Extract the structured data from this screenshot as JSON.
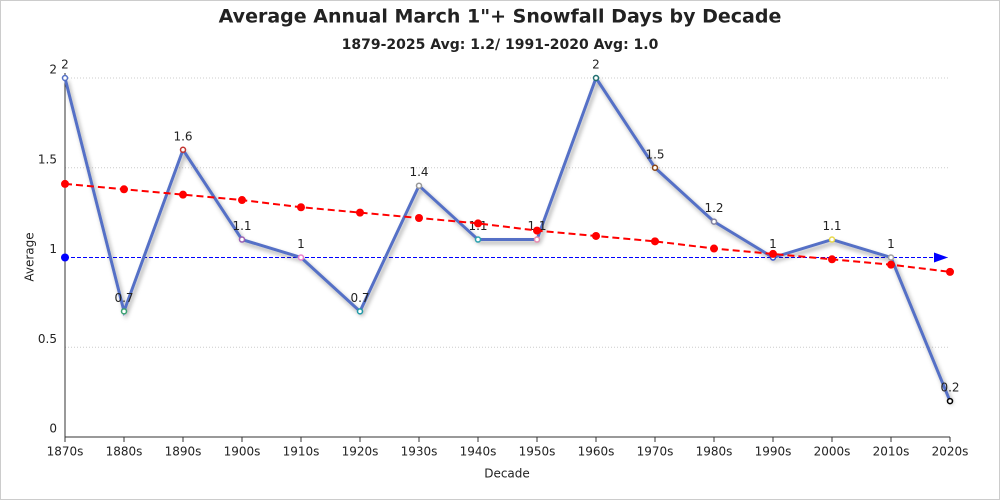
{
  "chart_data": {
    "type": "line",
    "title": "Average Annual March 1\"+ Snowfall Days by Decade",
    "subtitle": "1879-2025 Avg: 1.2/ 1991-2020 Avg: 1.0",
    "x_label": "Decade",
    "y_label": "Average",
    "categories": [
      "1870s",
      "1880s",
      "1890s",
      "1900s",
      "1910s",
      "1920s",
      "1930s",
      "1940s",
      "1950s",
      "1960s",
      "1970s",
      "1980s",
      "1990s",
      "2000s",
      "2010s",
      "2020s"
    ],
    "series": [
      {
        "color": "#5470c6",
        "values": [
          2,
          0.7,
          1.6,
          1.1,
          1,
          0.7,
          1.4,
          1.1,
          1.1,
          2,
          1.5,
          1.2,
          1,
          1.1,
          1,
          0.2
        ],
        "point_colors": [
          "#5470c6",
          "#3ba272",
          "#c23531",
          "#9a60b4",
          "#ea7ccc",
          "#1f9aa8",
          "#999999",
          "#2aa2b0",
          "#e88bb0",
          "#1f6f6f",
          "#8b4513",
          "#8080a0",
          "#3050d0",
          "#e8d84a",
          "#a0a0a0",
          "#000000"
        ],
        "labels": true
      },
      {
        "color": "#ff0000",
        "dashed": true,
        "values": [
          1.41,
          1.38,
          1.35,
          1.32,
          1.28,
          1.25,
          1.22,
          1.19,
          1.15,
          1.12,
          1.09,
          1.05,
          1.02,
          0.99,
          0.96,
          0.92
        ]
      }
    ],
    "reference_line": {
      "value": 1,
      "color": "#0000ff"
    },
    "ylim": [
      0,
      2
    ],
    "yticks": [
      0,
      0.5,
      1,
      1.5,
      2
    ],
    "grid": true
  }
}
